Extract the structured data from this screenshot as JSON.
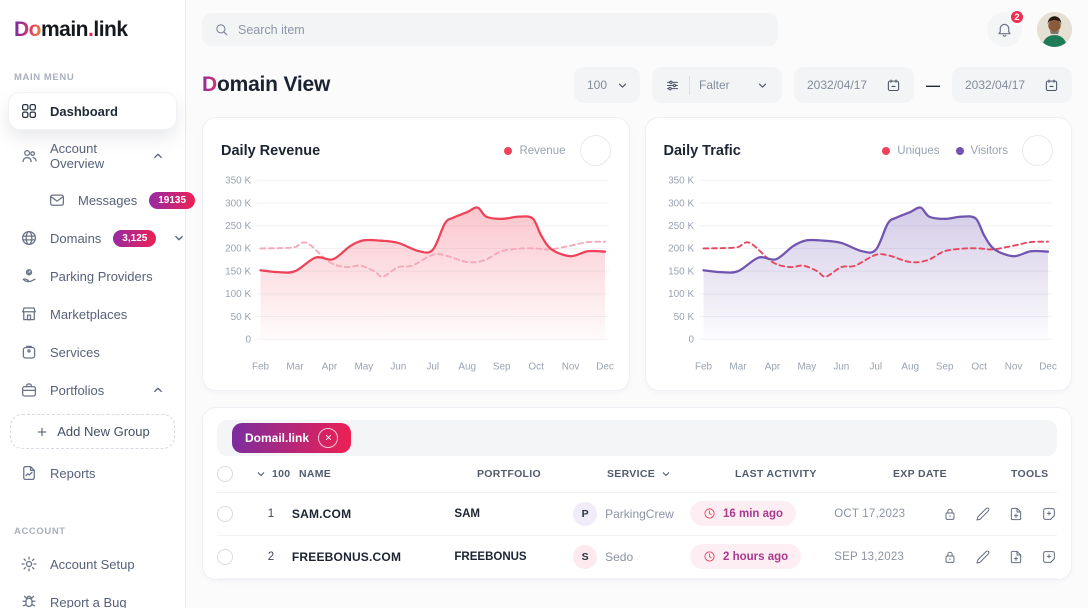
{
  "colors": {
    "accent_red": "#ee4259",
    "accent_purple": "#7054b0",
    "dashed_pink": "#f4a9b8",
    "dashed_red": "#e8475f",
    "badge_gradient": [
      "#952ba4",
      "#ee2053"
    ],
    "chip_gradient": [
      "#7b2d9e",
      "#ee2053"
    ],
    "pill_bg": "#f3f4f6"
  },
  "sidebar": {
    "logo": {
      "part1": "Do",
      "part2": "main",
      "dot": ".",
      "part3": "link"
    },
    "main_menu_label": "MAIN MENU",
    "account_label": "ACCOUNT",
    "items": [
      {
        "label": "Dashboard",
        "icon": "dashboard",
        "active": true
      },
      {
        "label": "Account Overview",
        "icon": "users",
        "chevron": "up"
      },
      {
        "label": "Messages",
        "icon": "mail",
        "badge": "19135",
        "indent": true
      },
      {
        "label": "Domains",
        "icon": "globe",
        "badge": "3,125",
        "chevron": "down"
      },
      {
        "label": "Parking Providers",
        "icon": "parking"
      },
      {
        "label": "Marketplaces",
        "icon": "store"
      },
      {
        "label": "Services",
        "icon": "services"
      },
      {
        "label": "Portfolios",
        "icon": "briefcase",
        "chevron": "up"
      },
      {
        "label": "Add New Group",
        "icon": "plus",
        "type": "action"
      },
      {
        "label": "Reports",
        "icon": "report"
      }
    ],
    "account_items": [
      {
        "label": "Account Setup",
        "icon": "gear"
      },
      {
        "label": "Report a Bug",
        "icon": "bug"
      }
    ]
  },
  "topbar": {
    "search_placeholder": "Search item",
    "notification_count": "2"
  },
  "header": {
    "title_accent": "D",
    "title_rest": "omain View",
    "page_size": "100",
    "filter_label": "Falter",
    "date_from": "2032/04/17",
    "date_separator": "—",
    "date_to": "2032/04/17"
  },
  "chart_data": [
    {
      "type": "area",
      "title": "Daily Revenue",
      "x_labels": [
        "Feb",
        "Mar",
        "Apr",
        "May",
        "Jun",
        "Jul",
        "Aug",
        "Sep",
        "Oct",
        "Nov",
        "Dec"
      ],
      "y_tick_labels": [
        "350 K",
        "300 K",
        "250 K",
        "200 K",
        "150 K",
        "100 K",
        "50 K",
        "0"
      ],
      "y_ticks_k": [
        350,
        300,
        250,
        200,
        150,
        100,
        50,
        0
      ],
      "ylim_k": [
        0,
        350
      ],
      "grid": true,
      "legend": [
        {
          "label": "Revenue",
          "color": "#ee4259"
        }
      ],
      "series": [
        {
          "name": "Revenue",
          "style": "solid",
          "color": "#ee4259",
          "fill": true,
          "unit": "K",
          "points": [
            [
              0,
              152
            ],
            [
              0.5,
              148
            ],
            [
              1,
              150
            ],
            [
              1.6,
              180
            ],
            [
              2.1,
              176
            ],
            [
              2.6,
              205
            ],
            [
              3,
              218
            ],
            [
              3.5,
              217
            ],
            [
              4,
              212
            ],
            [
              4.6,
              194
            ],
            [
              5,
              197
            ],
            [
              5.35,
              255
            ],
            [
              5.6,
              268
            ],
            [
              6,
              280
            ],
            [
              6.3,
              290
            ],
            [
              6.55,
              270
            ],
            [
              7,
              265
            ],
            [
              7.5,
              270
            ],
            [
              7.9,
              266
            ],
            [
              8.15,
              228
            ],
            [
              8.45,
              198
            ],
            [
              9,
              183
            ],
            [
              9.5,
              194
            ],
            [
              10,
              193
            ]
          ]
        },
        {
          "name": "Revenue",
          "style": "dashed",
          "color": "#f4a9b8",
          "fill": false,
          "unit": "K",
          "points": [
            [
              0,
              200
            ],
            [
              0.7,
              201
            ],
            [
              1,
              203
            ],
            [
              1.35,
              212
            ],
            [
              2,
              170
            ],
            [
              2.5,
              159
            ],
            [
              2.9,
              162
            ],
            [
              3.3,
              150
            ],
            [
              3.55,
              138
            ],
            [
              4,
              159
            ],
            [
              4.4,
              162
            ],
            [
              5,
              186
            ],
            [
              5.4,
              184
            ],
            [
              6,
              170
            ],
            [
              6.5,
              174
            ],
            [
              7,
              194
            ],
            [
              7.6,
              200
            ],
            [
              8,
              200
            ],
            [
              8.4,
              198
            ],
            [
              9,
              206
            ],
            [
              9.5,
              214
            ],
            [
              10,
              215
            ]
          ]
        }
      ]
    },
    {
      "type": "area",
      "title": "Daily Trafic",
      "x_labels": [
        "Feb",
        "Mar",
        "Apr",
        "May",
        "Jun",
        "Jul",
        "Aug",
        "Sep",
        "Oct",
        "Nov",
        "Dec"
      ],
      "y_tick_labels": [
        "350 K",
        "300 K",
        "250 K",
        "200 K",
        "150 K",
        "100 K",
        "50 K",
        "0"
      ],
      "y_ticks_k": [
        350,
        300,
        250,
        200,
        150,
        100,
        50,
        0
      ],
      "ylim_k": [
        0,
        350
      ],
      "grid": true,
      "legend": [
        {
          "label": "Uniques",
          "color": "#ee4259"
        },
        {
          "label": "Visitors",
          "color": "#7054b0"
        }
      ],
      "series": [
        {
          "name": "Visitors",
          "style": "solid",
          "color": "#7054b0",
          "fill": true,
          "unit": "K",
          "points": [
            [
              0,
              152
            ],
            [
              0.5,
              148
            ],
            [
              1,
              150
            ],
            [
              1.6,
              180
            ],
            [
              2.1,
              176
            ],
            [
              2.6,
              205
            ],
            [
              3,
              218
            ],
            [
              3.5,
              217
            ],
            [
              4,
              212
            ],
            [
              4.6,
              194
            ],
            [
              5,
              197
            ],
            [
              5.35,
              255
            ],
            [
              5.6,
              268
            ],
            [
              6,
              280
            ],
            [
              6.3,
              290
            ],
            [
              6.55,
              270
            ],
            [
              7,
              265
            ],
            [
              7.5,
              270
            ],
            [
              7.9,
              266
            ],
            [
              8.15,
              228
            ],
            [
              8.45,
              198
            ],
            [
              9,
              183
            ],
            [
              9.5,
              194
            ],
            [
              10,
              193
            ]
          ]
        },
        {
          "name": "Uniques",
          "style": "dashed",
          "color": "#e8475f",
          "fill": false,
          "unit": "K",
          "points": [
            [
              0,
              200
            ],
            [
              0.7,
              201
            ],
            [
              1,
              203
            ],
            [
              1.35,
              212
            ],
            [
              2,
              170
            ],
            [
              2.5,
              159
            ],
            [
              2.9,
              162
            ],
            [
              3.3,
              150
            ],
            [
              3.55,
              138
            ],
            [
              4,
              159
            ],
            [
              4.4,
              162
            ],
            [
              5,
              186
            ],
            [
              5.4,
              184
            ],
            [
              6,
              170
            ],
            [
              6.5,
              174
            ],
            [
              7,
              194
            ],
            [
              7.6,
              200
            ],
            [
              8,
              200
            ],
            [
              8.4,
              198
            ],
            [
              9,
              206
            ],
            [
              9.5,
              214
            ],
            [
              10,
              215
            ]
          ]
        }
      ]
    }
  ],
  "table": {
    "chip_label": "Domail.link",
    "columns": {
      "select_count": "100",
      "name": "NAME",
      "portfolio": "PORTFOLIO",
      "service": "SERVICE",
      "last_activity": "LAST ACTIVITY",
      "exp_date": "EXP DATE",
      "tools": "TOOLS"
    },
    "rows": [
      {
        "num": "1",
        "name": "SAM.COM",
        "portfolio": "SAM",
        "service_initial": "P",
        "service_initial_bg": "#f0ecf9",
        "service": "ParkingCrew",
        "last_activity": "16 min ago",
        "exp_date": "OCT 17,2023",
        "tools": [
          "lock",
          "edit",
          "add-file",
          "add-note"
        ]
      },
      {
        "num": "2",
        "name": "FREEBONUS.COM",
        "portfolio": "FREEBONUS",
        "service_initial": "S",
        "service_initial_bg": "#fdeaee",
        "service": "Sedo",
        "last_activity": "2 hours ago",
        "exp_date": "SEP 13,2023",
        "tools": [
          "lock",
          "edit",
          "add-file",
          "add-note"
        ]
      }
    ]
  }
}
